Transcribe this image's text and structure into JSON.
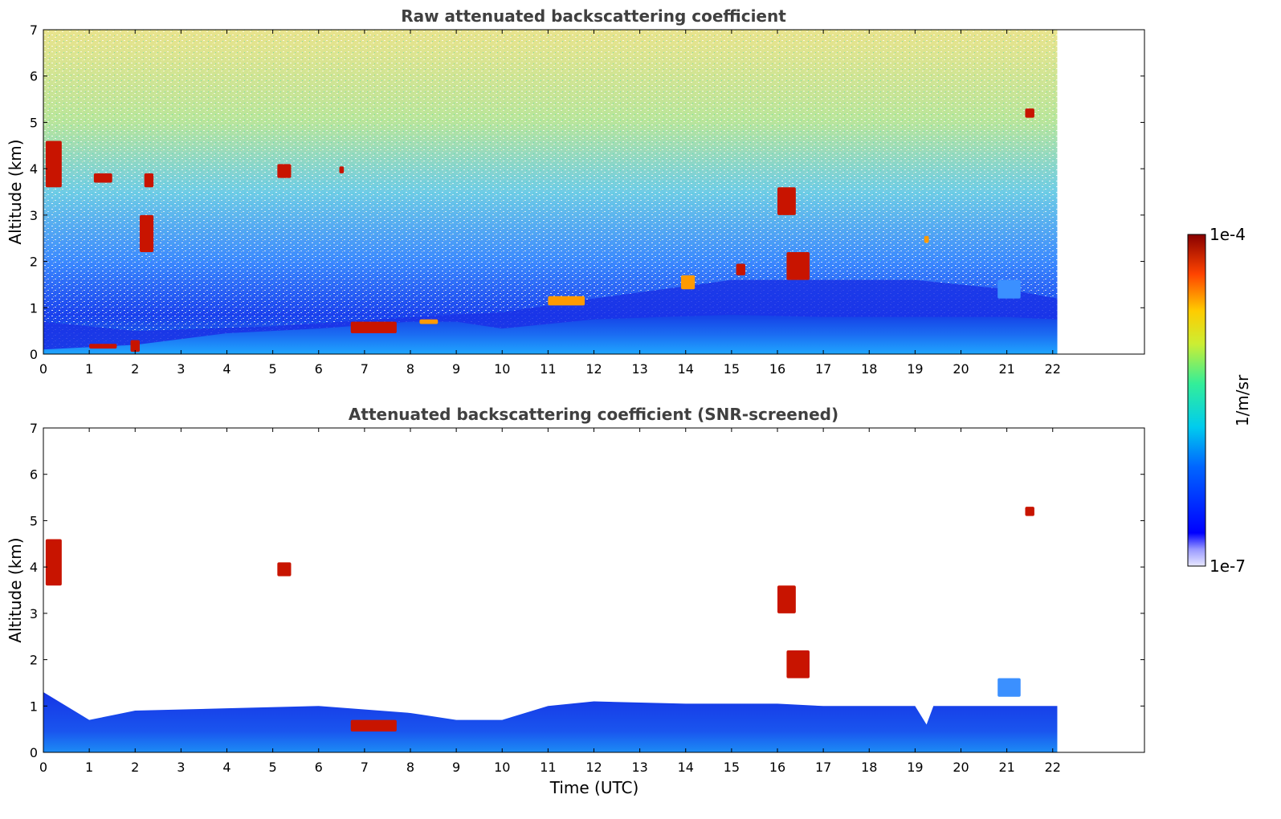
{
  "chart_data": [
    {
      "type": "heatmap",
      "title": "Raw attenuated backscattering coefficient",
      "xlabel": "",
      "ylabel": "Altitude (km)",
      "xlim": [
        0,
        24
      ],
      "ylim": [
        0,
        7
      ],
      "xticks": [
        "0",
        "1",
        "2",
        "3",
        "4",
        "5",
        "6",
        "7",
        "8",
        "9",
        "10",
        "11",
        "12",
        "13",
        "14",
        "15",
        "16",
        "17",
        "18",
        "19",
        "20",
        "21",
        "22"
      ],
      "yticks": [
        "0",
        "1",
        "2",
        "3",
        "4",
        "5",
        "6",
        "7"
      ],
      "data_time_range": [
        0,
        22.1
      ],
      "noise_floor_km": [
        [
          0,
          0.7
        ],
        [
          2,
          0.5
        ],
        [
          5,
          0.6
        ],
        [
          8,
          0.8
        ],
        [
          10,
          0.9
        ],
        [
          12,
          1.2
        ],
        [
          15,
          1.6
        ],
        [
          17,
          1.6
        ],
        [
          19,
          1.6
        ],
        [
          21,
          1.4
        ],
        [
          22.1,
          1.2
        ]
      ],
      "boundary_layer_km": [
        [
          0,
          0.1
        ],
        [
          2,
          0.2
        ],
        [
          4,
          0.45
        ],
        [
          6,
          0.55
        ],
        [
          8,
          0.7
        ],
        [
          9,
          0.7
        ],
        [
          10,
          0.55
        ],
        [
          12,
          0.75
        ],
        [
          15,
          0.85
        ],
        [
          17,
          0.8
        ],
        [
          19,
          0.8
        ],
        [
          21,
          0.8
        ],
        [
          22.1,
          0.75
        ]
      ],
      "features": [
        {
          "t": [
            0.05,
            0.4
          ],
          "h": [
            3.6,
            4.6
          ],
          "level": "high"
        },
        {
          "t": [
            1.0,
            1.6
          ],
          "h": [
            0.12,
            0.22
          ],
          "level": "high"
        },
        {
          "t": [
            1.9,
            2.1
          ],
          "h": [
            0.05,
            0.3
          ],
          "level": "high"
        },
        {
          "t": [
            2.1,
            2.4
          ],
          "h": [
            2.2,
            3.0
          ],
          "level": "high"
        },
        {
          "t": [
            2.2,
            2.4
          ],
          "h": [
            3.6,
            3.9
          ],
          "level": "high"
        },
        {
          "t": [
            1.1,
            1.5
          ],
          "h": [
            3.7,
            3.9
          ],
          "level": "high"
        },
        {
          "t": [
            5.1,
            5.4
          ],
          "h": [
            3.8,
            4.1
          ],
          "level": "high"
        },
        {
          "t": [
            6.45,
            6.55
          ],
          "h": [
            3.9,
            4.05
          ],
          "level": "high"
        },
        {
          "t": [
            6.7,
            7.7
          ],
          "h": [
            0.45,
            0.7
          ],
          "level": "high"
        },
        {
          "t": [
            8.2,
            8.6
          ],
          "h": [
            0.65,
            0.75
          ],
          "level": "mid"
        },
        {
          "t": [
            11.0,
            11.8
          ],
          "h": [
            1.05,
            1.25
          ],
          "level": "mid"
        },
        {
          "t": [
            13.9,
            14.2
          ],
          "h": [
            1.4,
            1.7
          ],
          "level": "mid"
        },
        {
          "t": [
            15.1,
            15.3
          ],
          "h": [
            1.7,
            1.95
          ],
          "level": "high"
        },
        {
          "t": [
            16.0,
            16.4
          ],
          "h": [
            3.0,
            3.6
          ],
          "level": "high"
        },
        {
          "t": [
            16.2,
            16.7
          ],
          "h": [
            1.6,
            2.2
          ],
          "level": "high"
        },
        {
          "t": [
            19.2,
            19.3
          ],
          "h": [
            2.4,
            2.55
          ],
          "level": "mid"
        },
        {
          "t": [
            20.8,
            21.3
          ],
          "h": [
            1.2,
            1.6
          ],
          "level": "low"
        },
        {
          "t": [
            21.4,
            21.6
          ],
          "h": [
            5.1,
            5.3
          ],
          "level": "high"
        }
      ]
    },
    {
      "type": "heatmap",
      "title": "Attenuated backscattering coefficient (SNR-screened)",
      "xlabel": "Time (UTC)",
      "ylabel": "Altitude (km)",
      "xlim": [
        0,
        24
      ],
      "ylim": [
        0,
        7
      ],
      "xticks": [
        "0",
        "1",
        "2",
        "3",
        "4",
        "5",
        "6",
        "7",
        "8",
        "9",
        "10",
        "11",
        "12",
        "13",
        "14",
        "15",
        "16",
        "17",
        "18",
        "19",
        "20",
        "21",
        "22"
      ],
      "yticks": [
        "0",
        "1",
        "2",
        "3",
        "4",
        "5",
        "6",
        "7"
      ],
      "data_time_range": [
        0,
        22.1
      ],
      "screened_top_km": [
        [
          0,
          1.3
        ],
        [
          1,
          0.7
        ],
        [
          2,
          0.9
        ],
        [
          4,
          0.95
        ],
        [
          6,
          1.0
        ],
        [
          8,
          0.85
        ],
        [
          9,
          0.7
        ],
        [
          10,
          0.7
        ],
        [
          11,
          1.0
        ],
        [
          12,
          1.1
        ],
        [
          14,
          1.05
        ],
        [
          16,
          1.05
        ],
        [
          17,
          1.0
        ],
        [
          19,
          1.0
        ],
        [
          19.25,
          0.6
        ],
        [
          19.4,
          1.0
        ],
        [
          21,
          1.0
        ],
        [
          22.1,
          1.0
        ]
      ],
      "features": [
        {
          "t": [
            0.05,
            0.4
          ],
          "h": [
            3.6,
            4.6
          ],
          "level": "high"
        },
        {
          "t": [
            5.1,
            5.4
          ],
          "h": [
            3.8,
            4.1
          ],
          "level": "high"
        },
        {
          "t": [
            16.0,
            16.4
          ],
          "h": [
            3.0,
            3.6
          ],
          "level": "high"
        },
        {
          "t": [
            16.2,
            16.7
          ],
          "h": [
            1.6,
            2.2
          ],
          "level": "high"
        },
        {
          "t": [
            21.4,
            21.6
          ],
          "h": [
            5.1,
            5.3
          ],
          "level": "high"
        },
        {
          "t": [
            6.7,
            7.7
          ],
          "h": [
            0.45,
            0.7
          ],
          "level": "high"
        },
        {
          "t": [
            20.8,
            21.3
          ],
          "h": [
            1.2,
            1.6
          ],
          "level": "low"
        }
      ]
    }
  ],
  "colorbar": {
    "min_label": "1e-7",
    "max_label": "1e-4",
    "label": "1/m/sr",
    "colormap": "jet",
    "scale": "log",
    "range": [
      1e-07,
      0.0001
    ]
  }
}
